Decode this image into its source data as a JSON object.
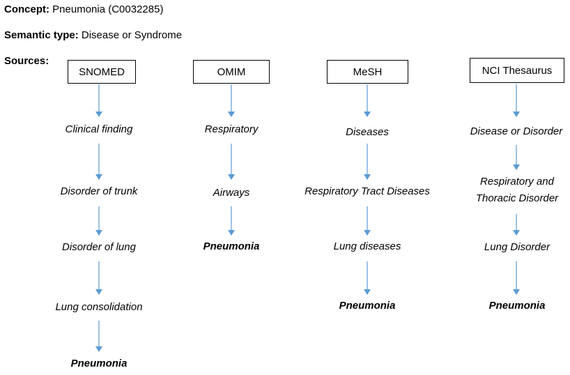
{
  "concept": {
    "label": "Concept:",
    "value": "Pneumonia (C0032285)"
  },
  "semantic_type": {
    "label": "Semantic type:",
    "value": "Disease or Syndrome"
  },
  "sources_label": "Sources:",
  "arrow_color": "#5b9bd5",
  "sources": [
    {
      "name": "SNOMED",
      "path": [
        "Clinical finding",
        "Disorder of trunk",
        "Disorder of lung",
        "Lung consolidation",
        "Pneumonia"
      ]
    },
    {
      "name": "OMIM",
      "path": [
        "Respiratory",
        "Airways",
        "Pneumonia"
      ]
    },
    {
      "name": "MeSH",
      "path": [
        "Diseases",
        "Respiratory Tract Diseases",
        "Lung diseases",
        "Pneumonia"
      ]
    },
    {
      "name": "NCI Thesaurus",
      "path": [
        "Disease or Disorder",
        "Respiratory and\nThoracic Disorder",
        "Lung Disorder",
        "Pneumonia"
      ]
    }
  ]
}
